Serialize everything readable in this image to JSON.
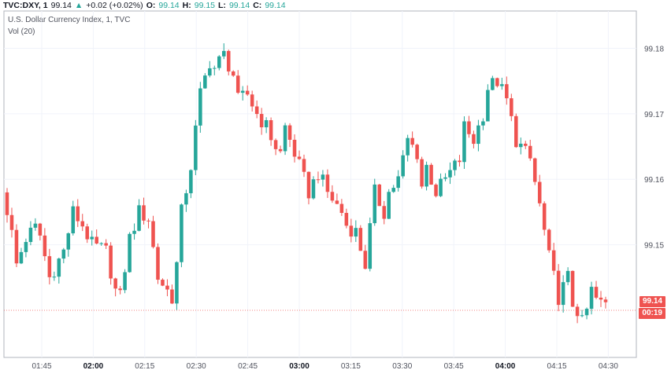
{
  "header": {
    "symbol": "TVC:DXY, 1",
    "last": "99.14",
    "change": "+0.02 (+0.02%)",
    "o_label": "O:",
    "o_value": "99.14",
    "h_label": "H:",
    "h_value": "99.15",
    "l_label": "L:",
    "l_value": "99.14",
    "c_label": "C:",
    "c_value": "99.14"
  },
  "legend": {
    "title": "U.S. Dollar Currency Index, 1, TVC",
    "volume": "Vol (20)"
  },
  "price_tag": {
    "price": "99.14",
    "countdown": "00:19"
  },
  "colors": {
    "up": "#26a69a",
    "down": "#ef5350",
    "grid": "#f0f3fa",
    "axis": "#50535e"
  },
  "chart_data": {
    "type": "candlestick",
    "y_ticks": [
      "99.18",
      "99.17",
      "99.16",
      "99.15"
    ],
    "y_tick_values": [
      99.18,
      99.17,
      99.16,
      99.15
    ],
    "x_ticks": [
      {
        "label": "01:45",
        "bold": false
      },
      {
        "label": "02:00",
        "bold": true
      },
      {
        "label": "02:15",
        "bold": false
      },
      {
        "label": "02:30",
        "bold": false
      },
      {
        "label": "02:45",
        "bold": false
      },
      {
        "label": "03:00",
        "bold": true
      },
      {
        "label": "03:15",
        "bold": false
      },
      {
        "label": "03:30",
        "bold": false
      },
      {
        "label": "03:45",
        "bold": false
      },
      {
        "label": "04:00",
        "bold": true
      },
      {
        "label": "04:15",
        "bold": false
      },
      {
        "label": "04:30",
        "bold": false
      }
    ],
    "ylim": [
      99.1328,
      99.1857
    ],
    "current_price": 99.14,
    "path_x": [
      0,
      1.5,
      3,
      5,
      7.5,
      10,
      13,
      15,
      17,
      19,
      22,
      24,
      25,
      27,
      29,
      31,
      33,
      36,
      37,
      38,
      40,
      42,
      44,
      45,
      47,
      49,
      50,
      52,
      54,
      56,
      58,
      59,
      60,
      62,
      65,
      67,
      69,
      72,
      73,
      75,
      77,
      79,
      81,
      82,
      84,
      86,
      88,
      89,
      90,
      92,
      94,
      96,
      97,
      98,
      100,
      102,
      103,
      105,
      107,
      109,
      112,
      114,
      116,
      118,
      120,
      121,
      122,
      123,
      124,
      125,
      125.5,
      127
    ],
    "path_y": [
      99.158,
      99.154,
      99.147,
      99.151,
      99.153,
      99.145,
      99.149,
      99.155,
      99.153,
      99.15,
      99.149,
      99.143,
      99.142,
      99.151,
      99.155,
      99.154,
      99.145,
      99.142,
      99.147,
      99.155,
      99.162,
      99.173,
      99.178,
      99.177,
      99.179,
      99.176,
      99.172,
      99.173,
      99.17,
      99.168,
      99.165,
      99.164,
      99.168,
      99.164,
      99.158,
      99.161,
      99.158,
      99.155,
      99.153,
      99.152,
      99.147,
      99.158,
      99.155,
      99.158,
      99.16,
      99.166,
      99.164,
      99.159,
      99.162,
      99.158,
      99.16,
      99.162,
      99.163,
      99.168,
      99.166,
      99.17,
      99.174,
      99.175,
      99.172,
      99.166,
      99.163,
      99.156,
      99.148,
      99.142,
      99.145,
      99.141,
      99.14,
      99.138,
      99.14,
      99.143,
      99.142,
      99.141
    ]
  }
}
